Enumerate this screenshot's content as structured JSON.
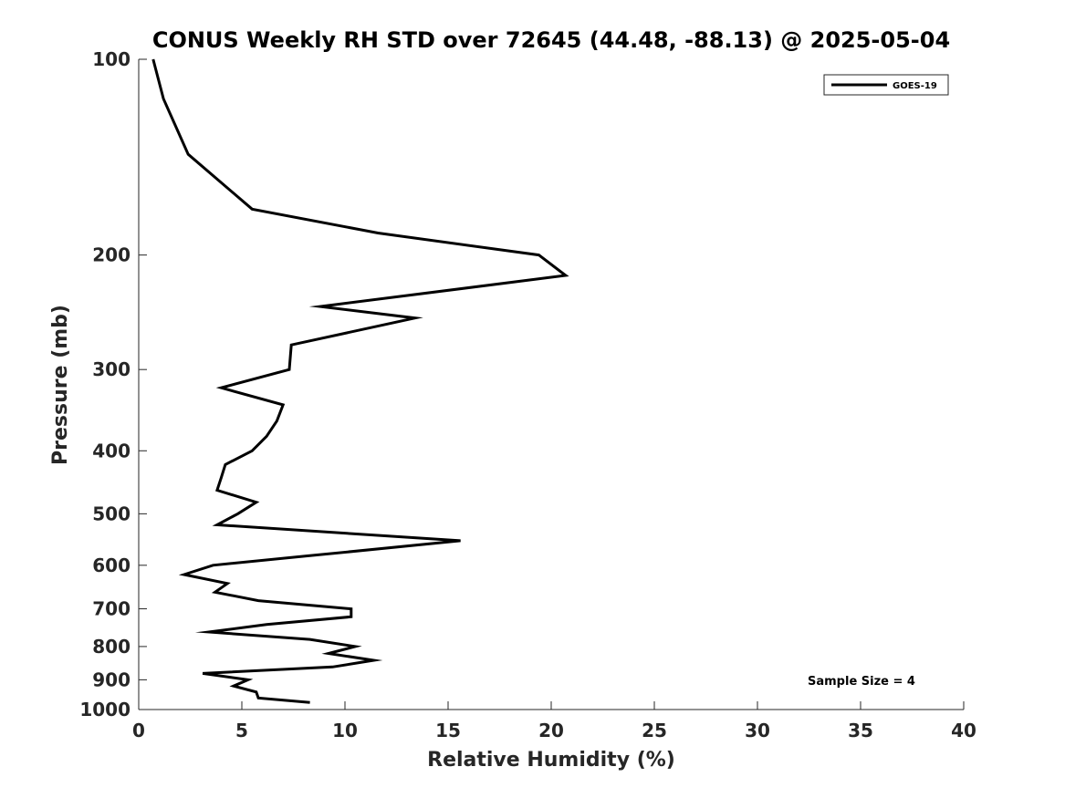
{
  "chart_data": {
    "type": "line",
    "title": "CONUS Weekly RH STD over 72645 (44.48, -88.13) @ 2025-05-04",
    "xlabel": "Relative Humidity (%)",
    "ylabel": "Pressure (mb)",
    "xlim": [
      0,
      40
    ],
    "ylim": [
      100,
      1000
    ],
    "yscale": "log",
    "yreversed": true,
    "xticks": [
      0,
      5,
      10,
      15,
      20,
      25,
      30,
      35,
      40
    ],
    "yticks": [
      100,
      200,
      300,
      400,
      500,
      600,
      700,
      800,
      900,
      1000
    ],
    "grid": false,
    "legend_position": "top-right",
    "series": [
      {
        "name": "GOES-19",
        "color": "#000000",
        "x": [
          0.7,
          1.2,
          2.4,
          5.5,
          11.6,
          19.4,
          20.7,
          8.8,
          13.4,
          7.4,
          7.3,
          4.0,
          7.0,
          6.7,
          6.2,
          5.5,
          4.2,
          4.0,
          3.8,
          5.7,
          4.8,
          3.8,
          15.6,
          8.3,
          3.6,
          2.2,
          4.3,
          3.7,
          5.8,
          10.3,
          10.3,
          6.2,
          3.4,
          8.3,
          10.5,
          9.2,
          11.4,
          9.4,
          3.1,
          5.3,
          4.6,
          5.7,
          5.8,
          8.3
        ],
        "y": [
          100,
          115,
          140,
          170,
          185,
          200,
          215,
          240,
          250,
          275,
          300,
          320,
          340,
          360,
          380,
          400,
          420,
          440,
          460,
          480,
          500,
          520,
          550,
          580,
          600,
          620,
          640,
          660,
          680,
          700,
          720,
          740,
          760,
          780,
          800,
          820,
          840,
          860,
          880,
          900,
          920,
          940,
          960,
          975
        ]
      }
    ],
    "annotation": "Sample Size = 4"
  }
}
